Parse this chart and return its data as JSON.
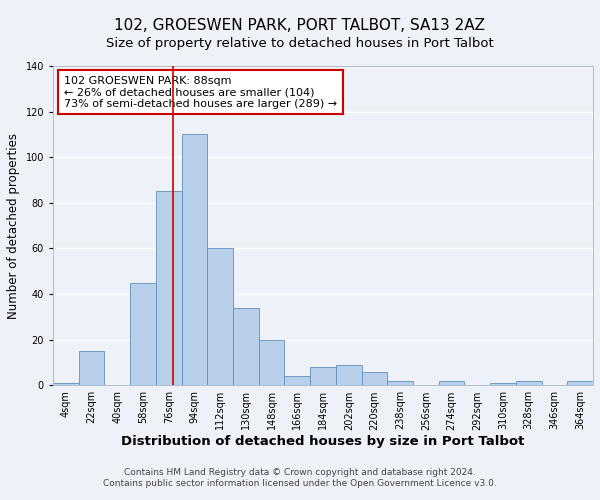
{
  "title": "102, GROESWEN PARK, PORT TALBOT, SA13 2AZ",
  "subtitle": "Size of property relative to detached houses in Port Talbot",
  "xlabel": "Distribution of detached houses by size in Port Talbot",
  "ylabel": "Number of detached properties",
  "bin_labels": [
    "4sqm",
    "22sqm",
    "40sqm",
    "58sqm",
    "76sqm",
    "94sqm",
    "112sqm",
    "130sqm",
    "148sqm",
    "166sqm",
    "184sqm",
    "202sqm",
    "220sqm",
    "238sqm",
    "256sqm",
    "274sqm",
    "292sqm",
    "310sqm",
    "328sqm",
    "346sqm",
    "364sqm"
  ],
  "bin_edges": [
    4,
    22,
    40,
    58,
    76,
    94,
    112,
    130,
    148,
    166,
    184,
    202,
    220,
    238,
    256,
    274,
    292,
    310,
    328,
    346,
    364
  ],
  "bar_heights": [
    1,
    15,
    0,
    45,
    85,
    110,
    60,
    34,
    20,
    4,
    8,
    9,
    6,
    2,
    0,
    2,
    0,
    1,
    2,
    0,
    2
  ],
  "bar_color": "#b8d0ea",
  "bar_edge_color": "#6090c0",
  "property_line_x": 88,
  "annotation_title": "102 GROESWEN PARK: 88sqm",
  "annotation_line1": "← 26% of detached houses are smaller (104)",
  "annotation_line2": "73% of semi-detached houses are larger (289) →",
  "annotation_box_color": "#ffffff",
  "annotation_box_edge": "#cc0000",
  "vline_color": "#cc0000",
  "ylim": [
    0,
    140
  ],
  "yticks": [
    0,
    20,
    40,
    60,
    80,
    100,
    120,
    140
  ],
  "footer1": "Contains HM Land Registry data © Crown copyright and database right 2024.",
  "footer2": "Contains public sector information licensed under the Open Government Licence v3.0.",
  "background_color": "#eef2f8",
  "grid_color": "#ffffff",
  "title_fontsize": 11,
  "subtitle_fontsize": 9.5,
  "xlabel_fontsize": 9.5,
  "ylabel_fontsize": 8.5,
  "tick_fontsize": 7,
  "annotation_fontsize": 8,
  "footer_fontsize": 6.5
}
